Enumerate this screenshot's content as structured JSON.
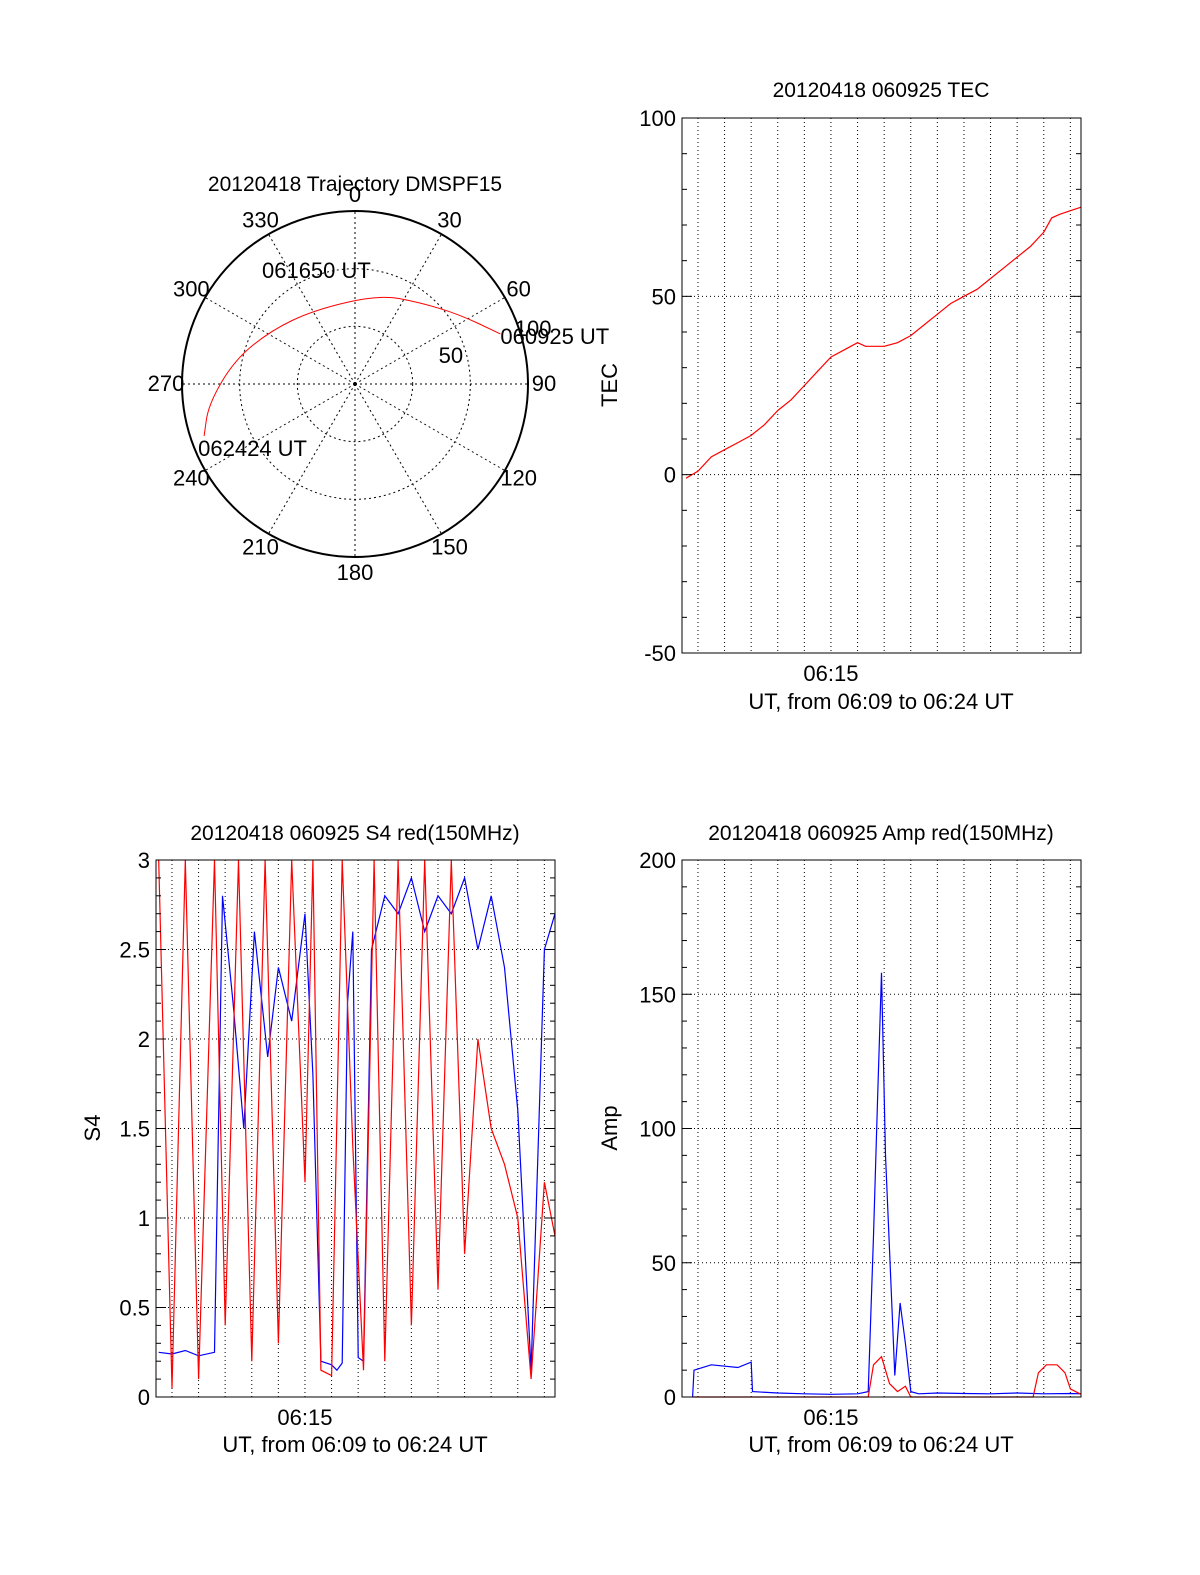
{
  "chart_data": [
    {
      "type": "polar",
      "title": "20120418 Trajectory DMSPF15",
      "angle_labels": [
        "0",
        "30",
        "60",
        "90",
        "120",
        "150",
        "180",
        "210",
        "240",
        "270",
        "300",
        "330"
      ],
      "radius_labels": [
        "50",
        "100"
      ],
      "series": [
        {
          "color": "#ff0000",
          "points": [
            {
              "az": 71,
              "el": 10
            },
            {
              "az": 56,
              "el": 25
            },
            {
              "az": 38,
              "el": 36
            },
            {
              "az": 15,
              "el": 42
            },
            {
              "az": 331,
              "el": 46
            },
            {
              "az": 302,
              "el": 38
            },
            {
              "az": 281,
              "el": 26
            },
            {
              "az": 262,
              "el": 13
            },
            {
              "az": 251,
              "el": 7
            }
          ]
        }
      ],
      "annotations": [
        {
          "text": "060925 UT",
          "az": 71,
          "el": 10
        },
        {
          "text": "061650 UT",
          "az": 331,
          "el": 46
        },
        {
          "text": "062424 UT",
          "az": 251,
          "el": 7
        }
      ]
    },
    {
      "type": "line",
      "title": "20120418 060925 TEC",
      "ylabel": "TEC",
      "xlabel": "UT, from 06:09 to 06:24 UT",
      "xlim": [
        369.4,
        384.4
      ],
      "ylim": [
        -50,
        100
      ],
      "yticks": [
        -50,
        0,
        50,
        100
      ],
      "xticks": [
        {
          "value": 375,
          "label": "06:15"
        }
      ],
      "grid": true,
      "series": [
        {
          "color": "#ff0000",
          "x": [
            369.55,
            370.0,
            370.5,
            371.0,
            371.5,
            372.0,
            372.5,
            373.0,
            373.5,
            374.0,
            374.5,
            375.0,
            375.5,
            376.0,
            376.3,
            376.6,
            377.0,
            377.5,
            378.0,
            378.5,
            379.0,
            379.5,
            380.0,
            380.5,
            381.0,
            381.5,
            382.0,
            382.5,
            383.0,
            383.3,
            383.6,
            384.0,
            384.4
          ],
          "y": [
            -1,
            1,
            5,
            7,
            9,
            11,
            14,
            18,
            21,
            25,
            29,
            33,
            35,
            37,
            36,
            36,
            36,
            37,
            39,
            42,
            45,
            48,
            50,
            52,
            55,
            58,
            61,
            64,
            68,
            72,
            73,
            74,
            75
          ]
        }
      ]
    },
    {
      "type": "line",
      "title": "20120418 060925 S4 red(150MHz)",
      "ylabel": "S4",
      "xlabel": "UT, from 06:09 to 06:24 UT",
      "xlim": [
        369.4,
        384.4
      ],
      "ylim": [
        0,
        3
      ],
      "yticks": [
        0,
        0.5,
        1,
        1.5,
        2,
        2.5,
        3
      ],
      "ytick_labels": [
        "0",
        "0.5",
        "1",
        "1.5",
        "2",
        "2.5",
        "3"
      ],
      "xticks": [
        {
          "value": 375,
          "label": "06:15"
        }
      ],
      "grid": true,
      "series": [
        {
          "color": "#0000ff",
          "x": [
            369.5,
            370.0,
            370.5,
            371.0,
            371.6,
            371.9,
            372.3,
            372.7,
            373.1,
            373.6,
            374.0,
            374.5,
            375.0,
            375.3,
            375.6,
            376.0,
            376.2,
            376.4,
            376.6,
            376.8,
            377.0,
            377.2,
            377.5,
            378.0,
            378.5,
            379.0,
            379.5,
            380.0,
            380.5,
            381.0,
            381.5,
            382.0,
            382.5,
            383.0,
            383.5,
            384.0,
            384.4
          ],
          "y": [
            0.25,
            0.24,
            0.26,
            0.23,
            0.25,
            2.8,
            2.2,
            1.5,
            2.6,
            1.9,
            2.4,
            2.1,
            2.7,
            1.8,
            0.2,
            0.18,
            0.15,
            0.19,
            2.2,
            2.6,
            0.22,
            0.2,
            2.5,
            2.8,
            2.7,
            2.9,
            2.6,
            2.8,
            2.7,
            2.9,
            2.5,
            2.8,
            2.4,
            1.6,
            0.15,
            2.5,
            2.7
          ]
        },
        {
          "color": "#ff0000",
          "x": [
            369.5,
            370.0,
            370.5,
            371.0,
            371.6,
            372.0,
            372.5,
            373.0,
            373.5,
            374.0,
            374.5,
            375.0,
            375.3,
            375.6,
            376.0,
            376.4,
            376.8,
            377.2,
            377.6,
            378.0,
            378.5,
            379.0,
            379.5,
            380.0,
            380.5,
            381.0,
            381.5,
            382.0,
            382.5,
            383.0,
            383.5,
            384.0,
            384.4
          ],
          "y": [
            3,
            0.05,
            3,
            0.1,
            3,
            0.4,
            3,
            0.2,
            3,
            0.3,
            3,
            1.2,
            3,
            0.15,
            0.12,
            3,
            1.4,
            0.15,
            3,
            0.2,
            3,
            0.4,
            3,
            0.6,
            3,
            0.8,
            2.0,
            1.5,
            1.3,
            1.0,
            0.1,
            1.2,
            0.9
          ]
        }
      ]
    },
    {
      "type": "line",
      "title": "20120418 060925 Amp red(150MHz)",
      "ylabel": "Amp",
      "xlabel": "UT, from 06:09 to 06:24 UT",
      "xlim": [
        369.4,
        384.4
      ],
      "ylim": [
        0,
        200
      ],
      "yticks": [
        0,
        50,
        100,
        150,
        200
      ],
      "xticks": [
        {
          "value": 375,
          "label": "06:15"
        }
      ],
      "grid": true,
      "series": [
        {
          "color": "#0000ff",
          "x": [
            369.8,
            369.85,
            370.5,
            371.5,
            372.0,
            372.05,
            373.0,
            374.0,
            375.0,
            376.0,
            376.4,
            376.6,
            376.75,
            376.9,
            377.05,
            377.2,
            377.4,
            377.6,
            377.8,
            378.0,
            378.3,
            379.0,
            380.0,
            381.0,
            382.0,
            383.0,
            384.0,
            384.4
          ],
          "y": [
            0,
            10,
            12,
            11,
            13,
            2,
            1.5,
            1.2,
            1.0,
            1.2,
            2,
            60,
            110,
            158,
            90,
            55,
            8,
            35,
            20,
            2,
            1.2,
            1.5,
            1.3,
            1.2,
            1.5,
            1.2,
            1.3,
            1.2
          ]
        },
        {
          "color": "#ff0000",
          "x": [
            369.8,
            372.0,
            376.4,
            376.6,
            376.9,
            377.2,
            377.5,
            377.8,
            378.0,
            382.6,
            382.8,
            383.1,
            383.5,
            383.8,
            384.0,
            384.4
          ],
          "y": [
            0,
            0,
            0,
            12,
            15,
            5,
            2,
            4,
            0,
            0,
            9,
            12,
            12,
            9,
            3,
            1
          ]
        }
      ]
    }
  ]
}
